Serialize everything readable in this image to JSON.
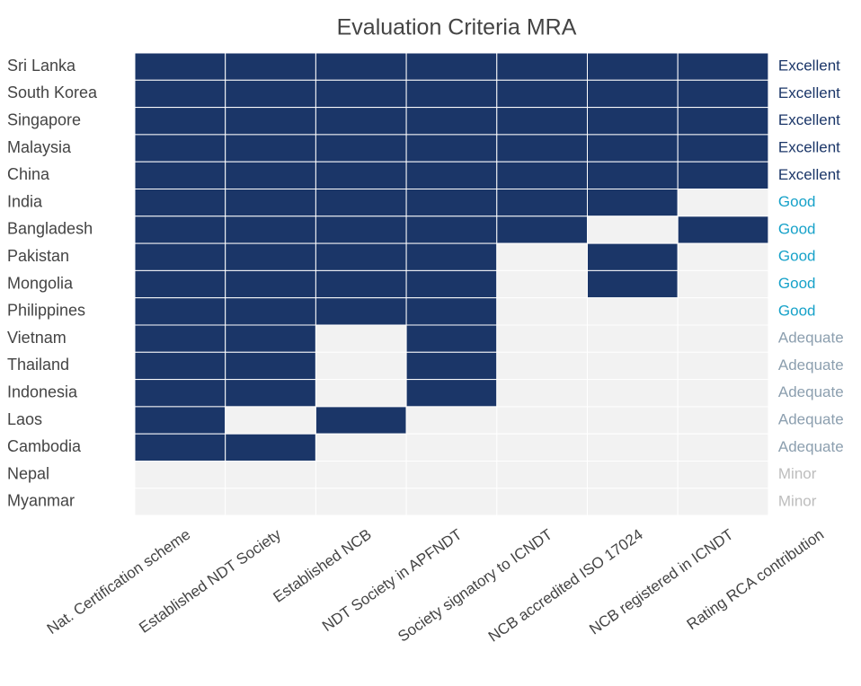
{
  "chart_data": {
    "type": "heatmap",
    "title": "Evaluation Criteria MRA",
    "rows": [
      "Sri Lanka",
      "South Korea",
      "Singapore",
      "Malaysia",
      "China",
      "India",
      "Bangladesh",
      "Pakistan",
      "Mongolia",
      "Philippines",
      "Vietnam",
      "Thailand",
      "Indonesia",
      "Laos",
      "Cambodia",
      "Nepal",
      "Myanmar"
    ],
    "columns": [
      "Nat. Certification scheme",
      "Established NDT Society",
      "Established NCB",
      "NDT Society in APFNDT",
      "Society signatory to ICNDT",
      "NCB accredited ISO 17024",
      "NCB registered in ICNDT",
      "Rating RCA contribution"
    ],
    "values": [
      [
        1,
        1,
        1,
        1,
        1,
        1,
        1
      ],
      [
        1,
        1,
        1,
        1,
        1,
        1,
        1
      ],
      [
        1,
        1,
        1,
        1,
        1,
        1,
        1
      ],
      [
        1,
        1,
        1,
        1,
        1,
        1,
        1
      ],
      [
        1,
        1,
        1,
        1,
        1,
        1,
        1
      ],
      [
        1,
        1,
        1,
        1,
        1,
        1,
        0
      ],
      [
        1,
        1,
        1,
        1,
        1,
        0,
        1
      ],
      [
        1,
        1,
        1,
        1,
        0,
        1,
        0
      ],
      [
        1,
        1,
        1,
        1,
        0,
        1,
        0
      ],
      [
        1,
        1,
        1,
        1,
        0,
        0,
        0
      ],
      [
        1,
        1,
        0,
        1,
        0,
        0,
        0
      ],
      [
        1,
        1,
        0,
        1,
        0,
        0,
        0
      ],
      [
        1,
        1,
        0,
        1,
        0,
        0,
        0
      ],
      [
        1,
        0,
        1,
        0,
        0,
        0,
        0
      ],
      [
        1,
        1,
        0,
        0,
        0,
        0,
        0
      ],
      [
        0,
        0,
        0,
        0,
        0,
        0,
        0
      ],
      [
        0,
        0,
        0,
        0,
        0,
        0,
        0
      ]
    ],
    "ratings": [
      "Excellent",
      "Excellent",
      "Excellent",
      "Excellent",
      "Excellent",
      "Good",
      "Good",
      "Good",
      "Good",
      "Good",
      "Adequate",
      "Adequate",
      "Adequate",
      "Adequate",
      "Adequate",
      "Minor",
      "Minor"
    ],
    "rating_colors": {
      "Excellent": "#1b3668",
      "Good": "#17a2c9",
      "Adequate": "#8c9faf",
      "Minor": "#bdbdbd"
    },
    "colors": {
      "on": "#1b3668",
      "off": "#f2f2f2"
    }
  }
}
